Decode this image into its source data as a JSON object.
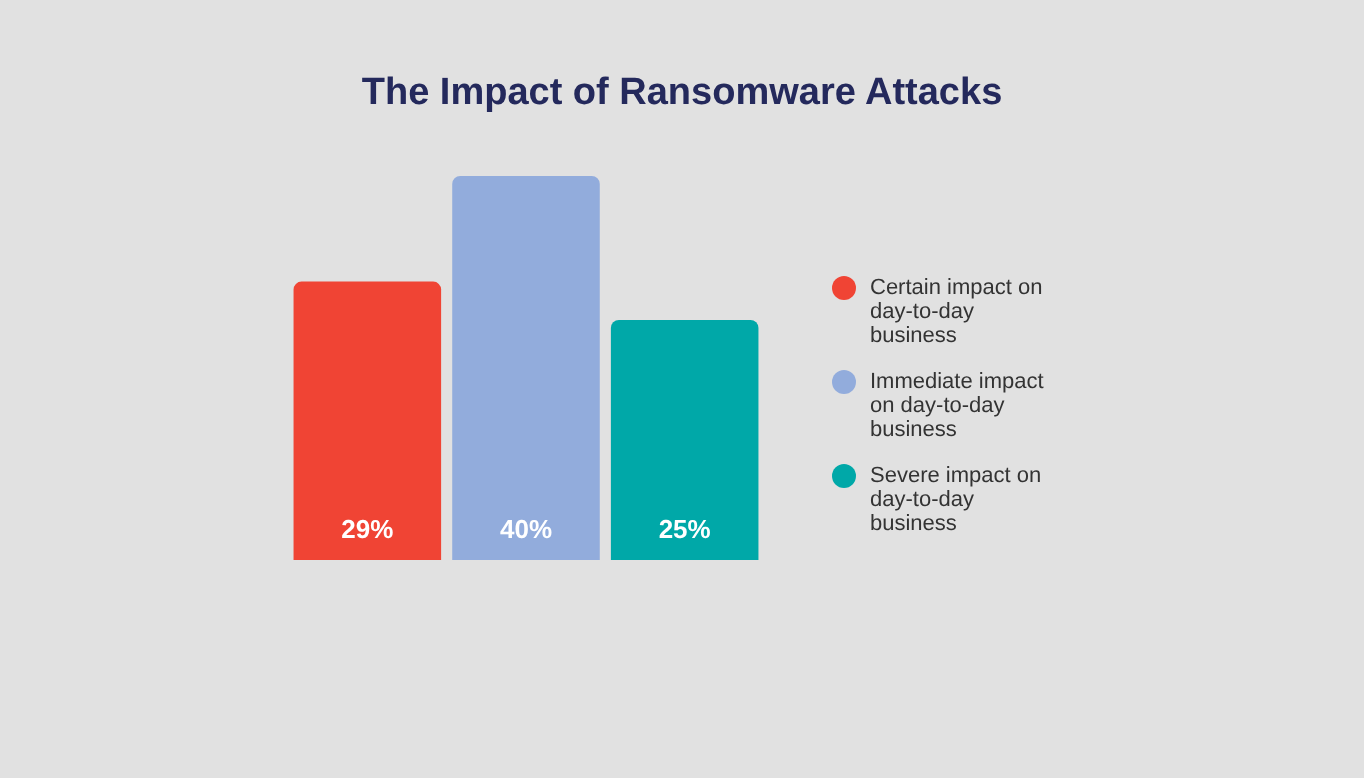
{
  "chart_data": {
    "type": "bar",
    "title": "The Impact of Ransomware Attacks",
    "categories": [
      null
    ],
    "series": [
      {
        "name": "Certain impact on day-to-day business",
        "color": "#f04434",
        "values": [
          29
        ],
        "value_labels": [
          "29%"
        ]
      },
      {
        "name": "Immediate impact on day-to-day business",
        "color": "#92acdc",
        "values": [
          40
        ],
        "value_labels": [
          "40%"
        ]
      },
      {
        "name": "Severe impact on day-to-day business",
        "color": "#00a8a8",
        "values": [
          25
        ],
        "value_labels": [
          "25%"
        ]
      }
    ],
    "legend": "right"
  }
}
